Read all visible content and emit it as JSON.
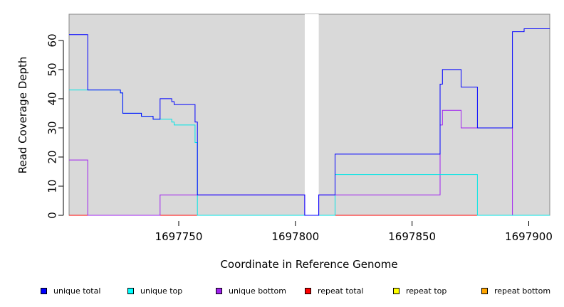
{
  "chart_data": {
    "type": "line",
    "xlabel": "Coordinate in Reference Genome",
    "ylabel": "Read Coverage Depth",
    "xlim": [
      1697703,
      1697909
    ],
    "ylim": [
      0,
      69
    ],
    "x_ticks": [
      1697750,
      1697800,
      1697850,
      1697900
    ],
    "x_tick_labels": [
      "1697750",
      "1697800",
      "1697850",
      "1697900"
    ],
    "y_ticks": [
      0,
      10,
      20,
      30,
      40,
      50,
      60
    ],
    "y_tick_labels": [
      "0",
      "10",
      "20",
      "30",
      "40",
      "50",
      "60"
    ],
    "panel_background": "#d9d9d9",
    "gap_region": [
      1697804,
      1697810
    ],
    "gap_color": "#ffffff",
    "series": [
      {
        "name": "unique total",
        "color": "#0000ff",
        "x": [
          1697703,
          1697711,
          1697711,
          1697725,
          1697725,
          1697726,
          1697726,
          1697734,
          1697734,
          1697739,
          1697739,
          1697742,
          1697742,
          1697747,
          1697747,
          1697748,
          1697748,
          1697757,
          1697757,
          1697758,
          1697758,
          1697804,
          1697804,
          1697810,
          1697810,
          1697817,
          1697817,
          1697862,
          1697862,
          1697863,
          1697863,
          1697871,
          1697871,
          1697878,
          1697878,
          1697893,
          1697893,
          1697898,
          1697898,
          1697909
        ],
        "y": [
          62,
          62,
          43,
          43,
          42,
          42,
          35,
          35,
          34,
          34,
          33,
          33,
          40,
          40,
          39,
          39,
          38,
          38,
          32,
          32,
          7,
          7,
          0,
          0,
          7,
          7,
          21,
          21,
          45,
          45,
          50,
          50,
          44,
          44,
          30,
          30,
          63,
          63,
          64,
          64
        ]
      },
      {
        "name": "unique top",
        "color": "#00e5e5",
        "x": [
          1697703,
          1697711,
          1697711,
          1697725,
          1697725,
          1697726,
          1697726,
          1697734,
          1697734,
          1697739,
          1697739,
          1697742,
          1697742,
          1697747,
          1697747,
          1697748,
          1697748,
          1697757,
          1697757,
          1697758,
          1697758,
          1697804,
          1697804,
          1697810,
          1697810,
          1697817,
          1697817,
          1697878,
          1697878,
          1697909
        ],
        "y": [
          43,
          43,
          43,
          43,
          42,
          42,
          35,
          35,
          34,
          34,
          33,
          33,
          33,
          33,
          32,
          32,
          31,
          31,
          25,
          25,
          0,
          0,
          0,
          0,
          0,
          0,
          14,
          14,
          0,
          0
        ]
      },
      {
        "name": "unique bottom",
        "color": "#a020f0",
        "x": [
          1697703,
          1697711,
          1697711,
          1697742,
          1697742,
          1697758,
          1697758,
          1697804,
          1697804,
          1697810,
          1697810,
          1697862,
          1697862,
          1697863,
          1697863,
          1697871,
          1697871,
          1697878,
          1697878,
          1697893,
          1697893,
          1697909
        ],
        "y": [
          19,
          19,
          0,
          0,
          7,
          7,
          7,
          7,
          0,
          0,
          7,
          7,
          31,
          31,
          36,
          36,
          30,
          30,
          30,
          30,
          0,
          0
        ]
      },
      {
        "name": "repeat total",
        "color": "#ff0000",
        "x": [
          1697703,
          1697909
        ],
        "y": [
          0,
          0
        ]
      },
      {
        "name": "repeat top",
        "color": "#ffff00",
        "x": [
          1697703,
          1697909
        ],
        "y": [
          0,
          0
        ]
      },
      {
        "name": "repeat bottom",
        "color": "#ffa500",
        "x": [
          1697703,
          1697909
        ],
        "y": [
          0,
          0
        ]
      }
    ],
    "legend": {
      "placement": "bottom",
      "items": [
        {
          "label": "unique total",
          "color": "#0000ff"
        },
        {
          "label": "unique top",
          "color": "#00ffff"
        },
        {
          "label": "unique bottom",
          "color": "#a020f0"
        },
        {
          "label": "repeat total",
          "color": "#ff0000"
        },
        {
          "label": "repeat top",
          "color": "#ffff00"
        },
        {
          "label": "repeat bottom",
          "color": "#ffa500"
        }
      ]
    }
  }
}
